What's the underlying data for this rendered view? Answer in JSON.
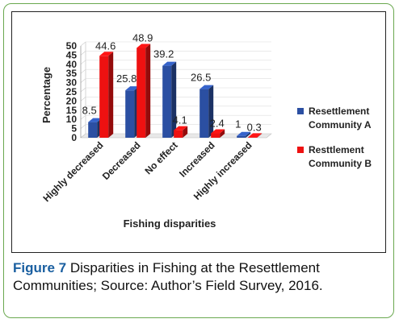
{
  "chart_data": {
    "type": "bar",
    "style": "3d-clustered",
    "categories": [
      "Highly decreased",
      "Decreased",
      "No effect",
      "Increased",
      "Highly increased"
    ],
    "series": [
      {
        "name": "Resettlement Community A",
        "values": [
          8.5,
          25.8,
          39.2,
          26.5,
          1
        ],
        "color": "#2b4fa2"
      },
      {
        "name": "Resttlement Community B",
        "values": [
          44.6,
          48.9,
          4.1,
          2.4,
          0.3
        ],
        "color": "#ee1111"
      }
    ],
    "data_labels": {
      "a": [
        "8.5",
        "25.8",
        "39.2",
        "26.5",
        "1"
      ],
      "b": [
        "44.6",
        "48.9",
        "4.1",
        "2.4",
        "0.3"
      ]
    },
    "ylabel": "Percentage",
    "xlabel": "Fishing disparities",
    "ylim": [
      0,
      50
    ],
    "yticks": [
      "0",
      "5",
      "10",
      "15",
      "20",
      "25",
      "30",
      "35",
      "40",
      "45",
      "50"
    ],
    "legend_position": "right"
  },
  "legend": {
    "a_line1": "Resettlement",
    "a_line2": "Community A",
    "b_line1": "Resttlement",
    "b_line2": "Community B"
  },
  "caption": {
    "figure_label": "Figure 7",
    "text": "Disparities in Fishing at the Resettlement Communities; Source: Author’s Field Survey, 2016."
  }
}
